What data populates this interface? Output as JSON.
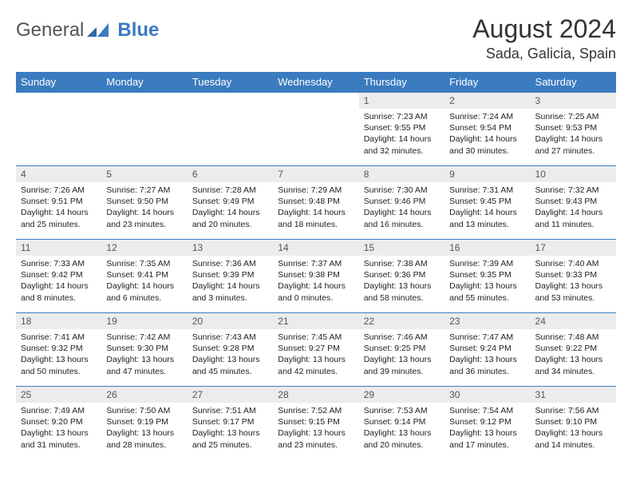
{
  "brand": {
    "part1": "General",
    "part2": "Blue"
  },
  "title": "August 2024",
  "location": "Sada, Galicia, Spain",
  "colors": {
    "header_bg": "#3b7bbf",
    "header_fg": "#ffffff",
    "daynum_bg": "#ececec",
    "border": "#3b7bbf",
    "text": "#222222"
  },
  "weekdays": [
    "Sunday",
    "Monday",
    "Tuesday",
    "Wednesday",
    "Thursday",
    "Friday",
    "Saturday"
  ],
  "weeks": [
    [
      {
        "n": "",
        "sr": "",
        "ss": "",
        "dl": ""
      },
      {
        "n": "",
        "sr": "",
        "ss": "",
        "dl": ""
      },
      {
        "n": "",
        "sr": "",
        "ss": "",
        "dl": ""
      },
      {
        "n": "",
        "sr": "",
        "ss": "",
        "dl": ""
      },
      {
        "n": "1",
        "sr": "Sunrise: 7:23 AM",
        "ss": "Sunset: 9:55 PM",
        "dl": "Daylight: 14 hours and 32 minutes."
      },
      {
        "n": "2",
        "sr": "Sunrise: 7:24 AM",
        "ss": "Sunset: 9:54 PM",
        "dl": "Daylight: 14 hours and 30 minutes."
      },
      {
        "n": "3",
        "sr": "Sunrise: 7:25 AM",
        "ss": "Sunset: 9:53 PM",
        "dl": "Daylight: 14 hours and 27 minutes."
      }
    ],
    [
      {
        "n": "4",
        "sr": "Sunrise: 7:26 AM",
        "ss": "Sunset: 9:51 PM",
        "dl": "Daylight: 14 hours and 25 minutes."
      },
      {
        "n": "5",
        "sr": "Sunrise: 7:27 AM",
        "ss": "Sunset: 9:50 PM",
        "dl": "Daylight: 14 hours and 23 minutes."
      },
      {
        "n": "6",
        "sr": "Sunrise: 7:28 AM",
        "ss": "Sunset: 9:49 PM",
        "dl": "Daylight: 14 hours and 20 minutes."
      },
      {
        "n": "7",
        "sr": "Sunrise: 7:29 AM",
        "ss": "Sunset: 9:48 PM",
        "dl": "Daylight: 14 hours and 18 minutes."
      },
      {
        "n": "8",
        "sr": "Sunrise: 7:30 AM",
        "ss": "Sunset: 9:46 PM",
        "dl": "Daylight: 14 hours and 16 minutes."
      },
      {
        "n": "9",
        "sr": "Sunrise: 7:31 AM",
        "ss": "Sunset: 9:45 PM",
        "dl": "Daylight: 14 hours and 13 minutes."
      },
      {
        "n": "10",
        "sr": "Sunrise: 7:32 AM",
        "ss": "Sunset: 9:43 PM",
        "dl": "Daylight: 14 hours and 11 minutes."
      }
    ],
    [
      {
        "n": "11",
        "sr": "Sunrise: 7:33 AM",
        "ss": "Sunset: 9:42 PM",
        "dl": "Daylight: 14 hours and 8 minutes."
      },
      {
        "n": "12",
        "sr": "Sunrise: 7:35 AM",
        "ss": "Sunset: 9:41 PM",
        "dl": "Daylight: 14 hours and 6 minutes."
      },
      {
        "n": "13",
        "sr": "Sunrise: 7:36 AM",
        "ss": "Sunset: 9:39 PM",
        "dl": "Daylight: 14 hours and 3 minutes."
      },
      {
        "n": "14",
        "sr": "Sunrise: 7:37 AM",
        "ss": "Sunset: 9:38 PM",
        "dl": "Daylight: 14 hours and 0 minutes."
      },
      {
        "n": "15",
        "sr": "Sunrise: 7:38 AM",
        "ss": "Sunset: 9:36 PM",
        "dl": "Daylight: 13 hours and 58 minutes."
      },
      {
        "n": "16",
        "sr": "Sunrise: 7:39 AM",
        "ss": "Sunset: 9:35 PM",
        "dl": "Daylight: 13 hours and 55 minutes."
      },
      {
        "n": "17",
        "sr": "Sunrise: 7:40 AM",
        "ss": "Sunset: 9:33 PM",
        "dl": "Daylight: 13 hours and 53 minutes."
      }
    ],
    [
      {
        "n": "18",
        "sr": "Sunrise: 7:41 AM",
        "ss": "Sunset: 9:32 PM",
        "dl": "Daylight: 13 hours and 50 minutes."
      },
      {
        "n": "19",
        "sr": "Sunrise: 7:42 AM",
        "ss": "Sunset: 9:30 PM",
        "dl": "Daylight: 13 hours and 47 minutes."
      },
      {
        "n": "20",
        "sr": "Sunrise: 7:43 AM",
        "ss": "Sunset: 9:28 PM",
        "dl": "Daylight: 13 hours and 45 minutes."
      },
      {
        "n": "21",
        "sr": "Sunrise: 7:45 AM",
        "ss": "Sunset: 9:27 PM",
        "dl": "Daylight: 13 hours and 42 minutes."
      },
      {
        "n": "22",
        "sr": "Sunrise: 7:46 AM",
        "ss": "Sunset: 9:25 PM",
        "dl": "Daylight: 13 hours and 39 minutes."
      },
      {
        "n": "23",
        "sr": "Sunrise: 7:47 AM",
        "ss": "Sunset: 9:24 PM",
        "dl": "Daylight: 13 hours and 36 minutes."
      },
      {
        "n": "24",
        "sr": "Sunrise: 7:48 AM",
        "ss": "Sunset: 9:22 PM",
        "dl": "Daylight: 13 hours and 34 minutes."
      }
    ],
    [
      {
        "n": "25",
        "sr": "Sunrise: 7:49 AM",
        "ss": "Sunset: 9:20 PM",
        "dl": "Daylight: 13 hours and 31 minutes."
      },
      {
        "n": "26",
        "sr": "Sunrise: 7:50 AM",
        "ss": "Sunset: 9:19 PM",
        "dl": "Daylight: 13 hours and 28 minutes."
      },
      {
        "n": "27",
        "sr": "Sunrise: 7:51 AM",
        "ss": "Sunset: 9:17 PM",
        "dl": "Daylight: 13 hours and 25 minutes."
      },
      {
        "n": "28",
        "sr": "Sunrise: 7:52 AM",
        "ss": "Sunset: 9:15 PM",
        "dl": "Daylight: 13 hours and 23 minutes."
      },
      {
        "n": "29",
        "sr": "Sunrise: 7:53 AM",
        "ss": "Sunset: 9:14 PM",
        "dl": "Daylight: 13 hours and 20 minutes."
      },
      {
        "n": "30",
        "sr": "Sunrise: 7:54 AM",
        "ss": "Sunset: 9:12 PM",
        "dl": "Daylight: 13 hours and 17 minutes."
      },
      {
        "n": "31",
        "sr": "Sunrise: 7:56 AM",
        "ss": "Sunset: 9:10 PM",
        "dl": "Daylight: 13 hours and 14 minutes."
      }
    ]
  ]
}
